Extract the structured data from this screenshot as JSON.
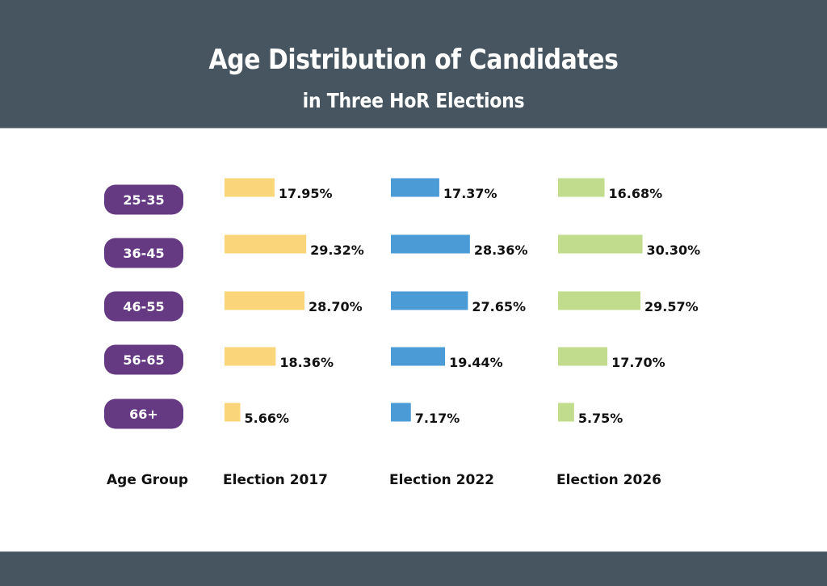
{
  "header": {
    "title": "Age Distribution of Candidates",
    "subtitle": "in Three HoR Elections"
  },
  "colors": {
    "header_bg": "#46555f",
    "pill": "#653a82",
    "series": [
      "#fbd57a",
      "#4b9bd6",
      "#c0dc8c"
    ],
    "text": "#111111"
  },
  "chart_data": {
    "type": "bar",
    "orientation": "horizontal",
    "title": "Age Distribution of Candidates in Three HoR Elections",
    "categories": [
      "25-35",
      "36-45",
      "46-55",
      "56-65",
      "66+"
    ],
    "category_axis_label": "Age Group",
    "series": [
      {
        "name": "Election 2017",
        "values": [
          17.95,
          29.32,
          28.7,
          18.36,
          5.66
        ],
        "labels": [
          "17.95%",
          "29.32%",
          "28.70%",
          "18.36%",
          "5.66%"
        ]
      },
      {
        "name": "Election 2022",
        "values": [
          17.37,
          28.36,
          27.65,
          19.44,
          7.17
        ],
        "labels": [
          "17.37%",
          "28.36%",
          "27.65%",
          "19.44%",
          "7.17%"
        ]
      },
      {
        "name": "Election 2026",
        "values": [
          16.68,
          30.3,
          29.57,
          17.7,
          5.75
        ],
        "labels": [
          "16.68%",
          "30.30%",
          "29.57%",
          "17.70%",
          "5.75%"
        ]
      }
    ],
    "unit": "%",
    "grid": false,
    "legend": "bottom"
  }
}
